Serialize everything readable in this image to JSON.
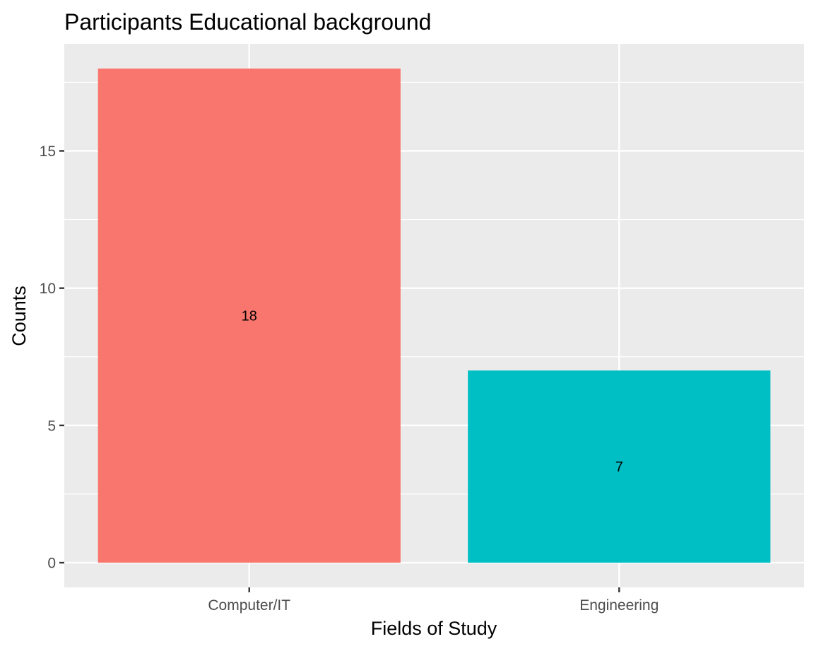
{
  "chart_data": {
    "type": "bar",
    "title": "Participants Educational background",
    "xlabel": "Fields of Study",
    "ylabel": "Counts",
    "categories": [
      "Computer/IT",
      "Engineering"
    ],
    "values": [
      18,
      7
    ],
    "data_labels": [
      "18",
      "7"
    ],
    "colors": [
      "#F8766D",
      "#00BFC4"
    ],
    "ylim": [
      -0.9,
      18.9
    ],
    "y_ticks": [
      0,
      5,
      10,
      15
    ],
    "y_tick_labels": [
      "0",
      "5",
      "10",
      "15"
    ],
    "y_minor_ticks": [
      2.5,
      7.5,
      12.5,
      17.5
    ],
    "grid": true,
    "panel_background": "#EBEBEB",
    "grid_color": "#FFFFFF",
    "legend": "none"
  }
}
